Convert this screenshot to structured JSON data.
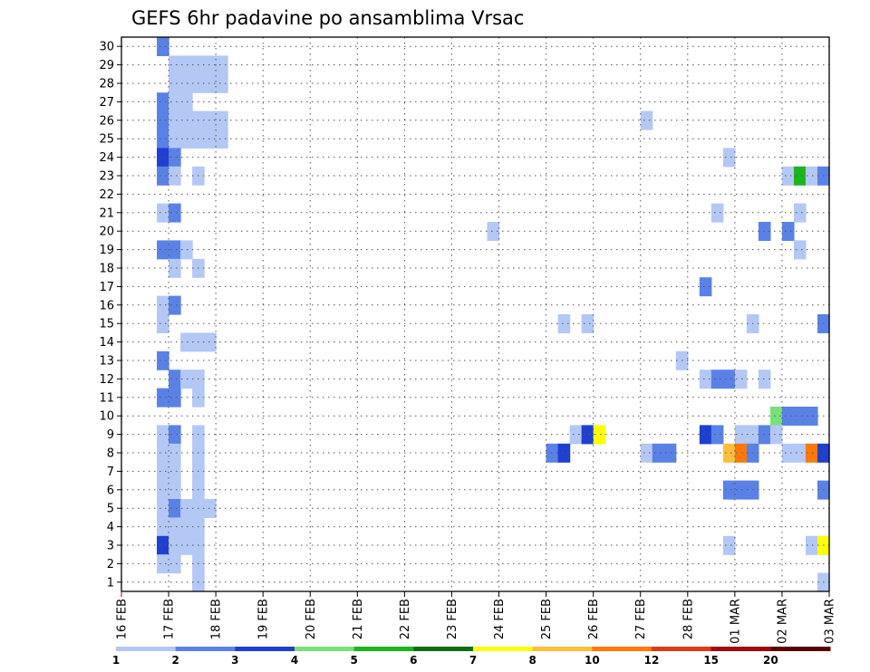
{
  "chart_data": {
    "type": "heatmap",
    "title": "GEFS 6hr padavine po ansamblima Vrsac",
    "xlabel": "",
    "ylabel": "",
    "x_tick_labels": [
      "16 FEB",
      "17 FEB",
      "18 FEB",
      "19 FEB",
      "20 FEB",
      "21 FEB",
      "22 FEB",
      "23 FEB",
      "24 FEB",
      "25 FEB",
      "26 FEB",
      "27 FEB",
      "28 FEB",
      "01 MAR",
      "02 MAR",
      "03 MAR"
    ],
    "y_tick_labels": [
      "1",
      "2",
      "3",
      "4",
      "5",
      "6",
      "7",
      "8",
      "9",
      "10",
      "11",
      "12",
      "13",
      "14",
      "15",
      "16",
      "17",
      "18",
      "19",
      "20",
      "21",
      "22",
      "23",
      "24",
      "25",
      "26",
      "27",
      "28",
      "29",
      "30"
    ],
    "time_step_hours": 6,
    "steps_per_day": 4,
    "xlim_steps": [
      0,
      60
    ],
    "ylim_members": [
      0.5,
      30.5
    ],
    "grid": true,
    "colorbar": {
      "labels": [
        "1",
        "2",
        "3",
        "4",
        "5",
        "6",
        "7",
        "8",
        "10",
        "12",
        "15",
        "20"
      ],
      "colors": [
        "#b4c8f5",
        "#5a82e6",
        "#1f3fd0",
        "#78e178",
        "#1eb41e",
        "#0f6e0f",
        "#ffff00",
        "#ffbe3c",
        "#ff780a",
        "#dc3c14",
        "#a00a0a",
        "#5a0000"
      ]
    },
    "cells": [
      [
        4,
        30,
        2
      ],
      [
        5,
        29,
        1
      ],
      [
        6,
        29,
        1
      ],
      [
        7,
        29,
        1
      ],
      [
        8,
        29,
        1
      ],
      [
        9,
        29,
        1
      ],
      [
        5,
        28,
        1
      ],
      [
        6,
        28,
        1
      ],
      [
        7,
        28,
        1
      ],
      [
        8,
        28,
        1
      ],
      [
        9,
        28,
        1
      ],
      [
        4,
        27,
        2
      ],
      [
        5,
        27,
        1
      ],
      [
        6,
        27,
        1
      ],
      [
        4,
        26,
        2
      ],
      [
        5,
        26,
        1
      ],
      [
        6,
        26,
        1
      ],
      [
        7,
        26,
        1
      ],
      [
        8,
        26,
        1
      ],
      [
        9,
        26,
        1
      ],
      [
        45,
        26,
        1
      ],
      [
        4,
        25,
        2
      ],
      [
        5,
        25,
        1
      ],
      [
        6,
        25,
        1
      ],
      [
        7,
        25,
        1
      ],
      [
        8,
        25,
        1
      ],
      [
        9,
        25,
        1
      ],
      [
        4,
        24,
        3
      ],
      [
        5,
        24,
        2
      ],
      [
        52,
        24,
        1
      ],
      [
        4,
        23,
        2
      ],
      [
        5,
        23,
        1
      ],
      [
        7,
        23,
        1
      ],
      [
        57,
        23,
        1
      ],
      [
        58,
        23,
        5
      ],
      [
        59,
        23,
        1
      ],
      [
        60,
        23,
        2
      ],
      [
        4,
        21,
        1
      ],
      [
        5,
        21,
        2
      ],
      [
        51,
        21,
        1
      ],
      [
        58,
        21,
        1
      ],
      [
        32,
        20,
        1
      ],
      [
        55,
        20,
        2
      ],
      [
        57,
        20,
        2
      ],
      [
        4,
        19,
        2
      ],
      [
        5,
        19,
        2
      ],
      [
        6,
        19,
        1
      ],
      [
        58,
        19,
        1
      ],
      [
        5,
        18,
        1
      ],
      [
        7,
        18,
        1
      ],
      [
        50,
        17,
        2
      ],
      [
        4,
        16,
        1
      ],
      [
        5,
        16,
        2
      ],
      [
        4,
        15,
        1
      ],
      [
        38,
        15,
        1
      ],
      [
        40,
        15,
        1
      ],
      [
        54,
        15,
        1
      ],
      [
        60,
        15,
        2
      ],
      [
        6,
        14,
        1
      ],
      [
        7,
        14,
        1
      ],
      [
        8,
        14,
        1
      ],
      [
        4,
        13,
        2
      ],
      [
        48,
        13,
        1
      ],
      [
        5,
        12,
        2
      ],
      [
        6,
        12,
        1
      ],
      [
        7,
        12,
        1
      ],
      [
        50,
        12,
        1
      ],
      [
        51,
        12,
        2
      ],
      [
        52,
        12,
        2
      ],
      [
        53,
        12,
        1
      ],
      [
        55,
        12,
        1
      ],
      [
        4,
        11,
        2
      ],
      [
        5,
        11,
        2
      ],
      [
        7,
        11,
        1
      ],
      [
        56,
        10,
        4
      ],
      [
        57,
        10,
        2
      ],
      [
        58,
        10,
        2
      ],
      [
        59,
        10,
        2
      ],
      [
        4,
        9,
        1
      ],
      [
        5,
        9,
        2
      ],
      [
        7,
        9,
        1
      ],
      [
        39,
        9,
        1
      ],
      [
        40,
        9,
        3
      ],
      [
        41,
        9,
        7
      ],
      [
        50,
        9,
        3
      ],
      [
        51,
        9,
        2
      ],
      [
        53,
        9,
        1
      ],
      [
        54,
        9,
        1
      ],
      [
        55,
        9,
        2
      ],
      [
        56,
        9,
        1
      ],
      [
        4,
        8,
        1
      ],
      [
        5,
        8,
        1
      ],
      [
        7,
        8,
        1
      ],
      [
        37,
        8,
        2
      ],
      [
        38,
        8,
        3
      ],
      [
        45,
        8,
        1
      ],
      [
        46,
        8,
        2
      ],
      [
        47,
        8,
        2
      ],
      [
        52,
        8,
        8
      ],
      [
        53,
        8,
        9
      ],
      [
        54,
        8,
        2
      ],
      [
        57,
        8,
        1
      ],
      [
        58,
        8,
        1
      ],
      [
        59,
        8,
        9
      ],
      [
        60,
        8,
        3
      ],
      [
        4,
        7,
        1
      ],
      [
        5,
        7,
        1
      ],
      [
        7,
        7,
        1
      ],
      [
        4,
        6,
        1
      ],
      [
        5,
        6,
        1
      ],
      [
        7,
        6,
        1
      ],
      [
        52,
        6,
        2
      ],
      [
        53,
        6,
        2
      ],
      [
        54,
        6,
        2
      ],
      [
        60,
        6,
        2
      ],
      [
        4,
        5,
        1
      ],
      [
        5,
        5,
        2
      ],
      [
        6,
        5,
        1
      ],
      [
        7,
        5,
        1
      ],
      [
        8,
        5,
        1
      ],
      [
        4,
        4,
        1
      ],
      [
        5,
        4,
        1
      ],
      [
        6,
        4,
        1
      ],
      [
        7,
        4,
        1
      ],
      [
        4,
        3,
        3
      ],
      [
        5,
        3,
        1
      ],
      [
        6,
        3,
        1
      ],
      [
        7,
        3,
        1
      ],
      [
        52,
        3,
        1
      ],
      [
        59,
        3,
        1
      ],
      [
        60,
        3,
        7
      ],
      [
        4,
        2,
        1
      ],
      [
        5,
        2,
        1
      ],
      [
        7,
        2,
        1
      ],
      [
        7,
        1,
        1
      ],
      [
        60,
        1,
        1
      ]
    ]
  }
}
